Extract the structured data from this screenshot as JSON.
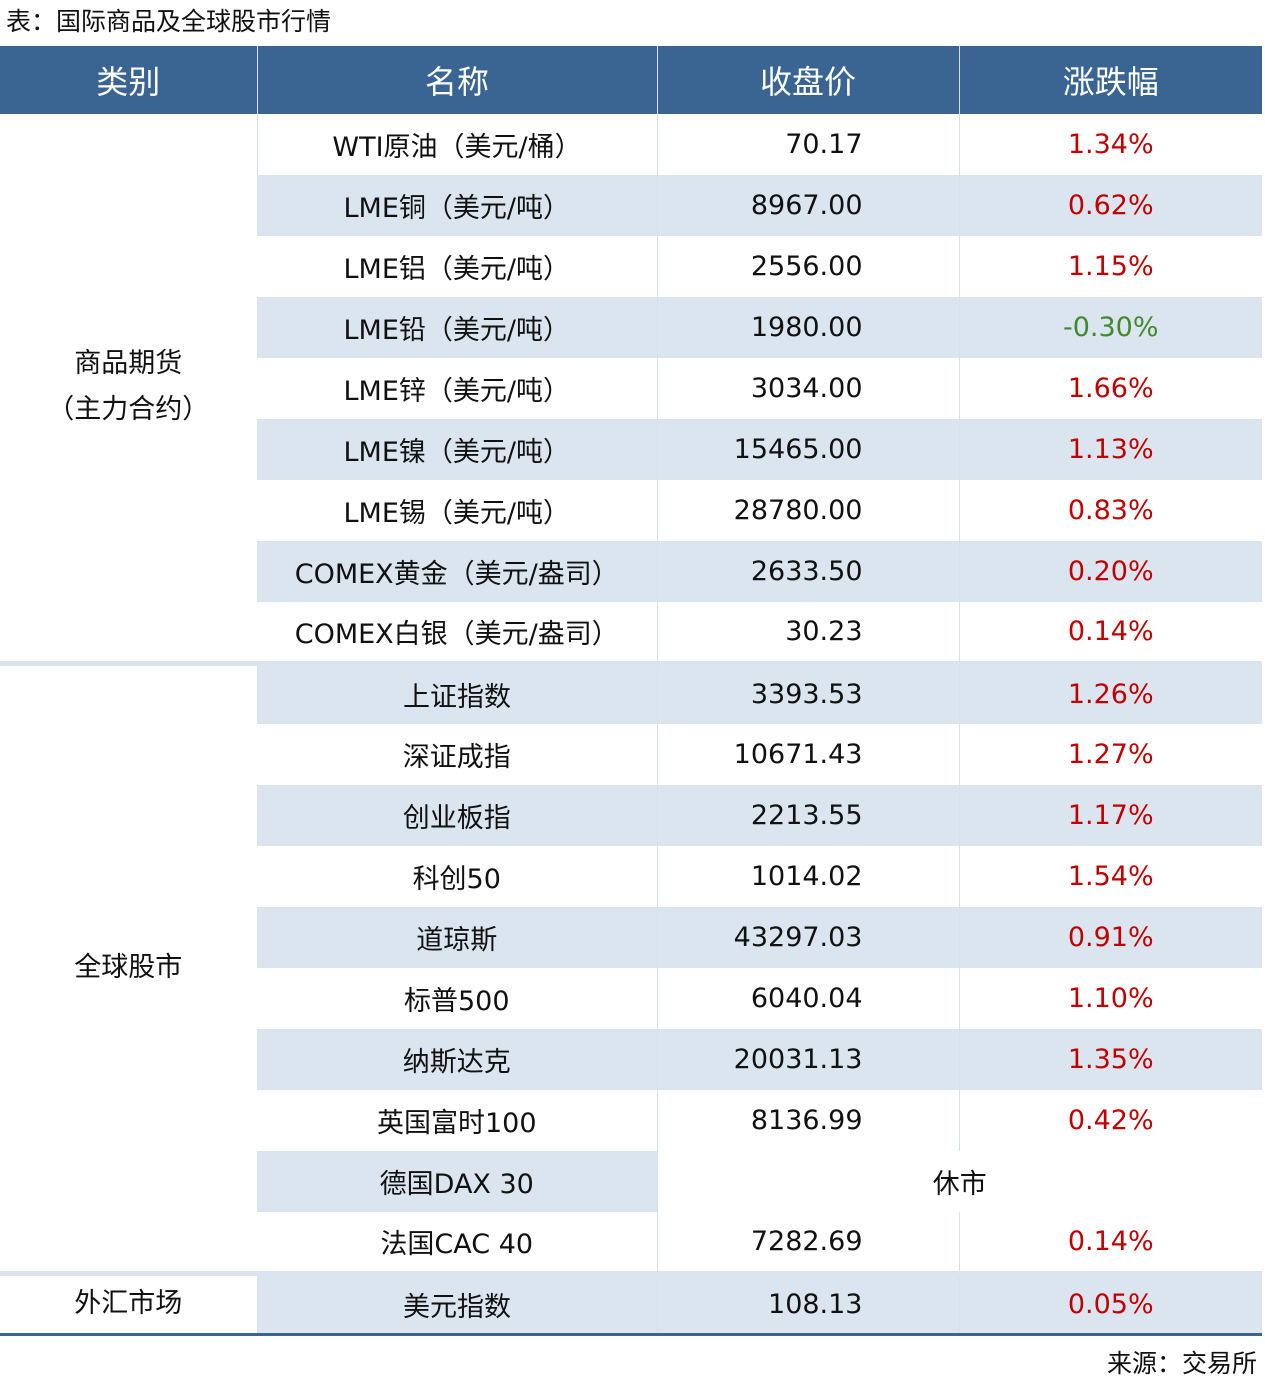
{
  "caption": "表：国际商品及全球股市行情",
  "headers": [
    "类别",
    "名称",
    "收盘价",
    "涨跌幅"
  ],
  "categories": {
    "commodities_line1": "商品期货",
    "commodities_line2": "（主力合约）",
    "stocks": "全球股市",
    "fx": "外汇市场"
  },
  "rows": [
    {
      "name": "WTI原油（美元/桶）",
      "price": "70.17",
      "change": "1.34%"
    },
    {
      "name": "LME铜（美元/吨）",
      "price": "8967.00",
      "change": "0.62%"
    },
    {
      "name": "LME铝（美元/吨）",
      "price": "2556.00",
      "change": "1.15%"
    },
    {
      "name": "LME铅（美元/吨）",
      "price": "1980.00",
      "change": "-0.30%"
    },
    {
      "name": "LME锌（美元/吨）",
      "price": "3034.00",
      "change": "1.66%"
    },
    {
      "name": "LME镍（美元/吨）",
      "price": "15465.00",
      "change": "1.13%"
    },
    {
      "name": "LME锡（美元/吨）",
      "price": "28780.00",
      "change": "0.83%"
    },
    {
      "name": "COMEX黄金（美元/盎司）",
      "price": "2633.50",
      "change": "0.20%"
    },
    {
      "name": "COMEX白银（美元/盎司）",
      "price": "30.23",
      "change": "0.14%"
    },
    {
      "name": "上证指数",
      "price": "3393.53",
      "change": "1.26%"
    },
    {
      "name": "深证成指",
      "price": "10671.43",
      "change": "1.27%"
    },
    {
      "name": "创业板指",
      "price": "2213.55",
      "change": "1.17%"
    },
    {
      "name": "科创50",
      "price": "1014.02",
      "change": "1.54%"
    },
    {
      "name": "道琼斯",
      "price": "43297.03",
      "change": "0.91%"
    },
    {
      "name": "标普500",
      "price": "6040.04",
      "change": "1.10%"
    },
    {
      "name": "纳斯达克",
      "price": "20031.13",
      "change": "1.35%"
    },
    {
      "name": "英国富时100",
      "price": "8136.99",
      "change": "0.42%"
    },
    {
      "name": "德国DAX 30",
      "closed": "休市"
    },
    {
      "name": "法国CAC 40",
      "price": "7282.69",
      "change": "0.14%"
    },
    {
      "name": "美元指数",
      "price": "108.13",
      "change": "0.05%"
    }
  ],
  "colors": {
    "header_bg": "#3a6593",
    "stripe": "#dbe5ef",
    "up": "#c00000",
    "down": "#3f8a2c"
  },
  "source": "来源：交易所"
}
